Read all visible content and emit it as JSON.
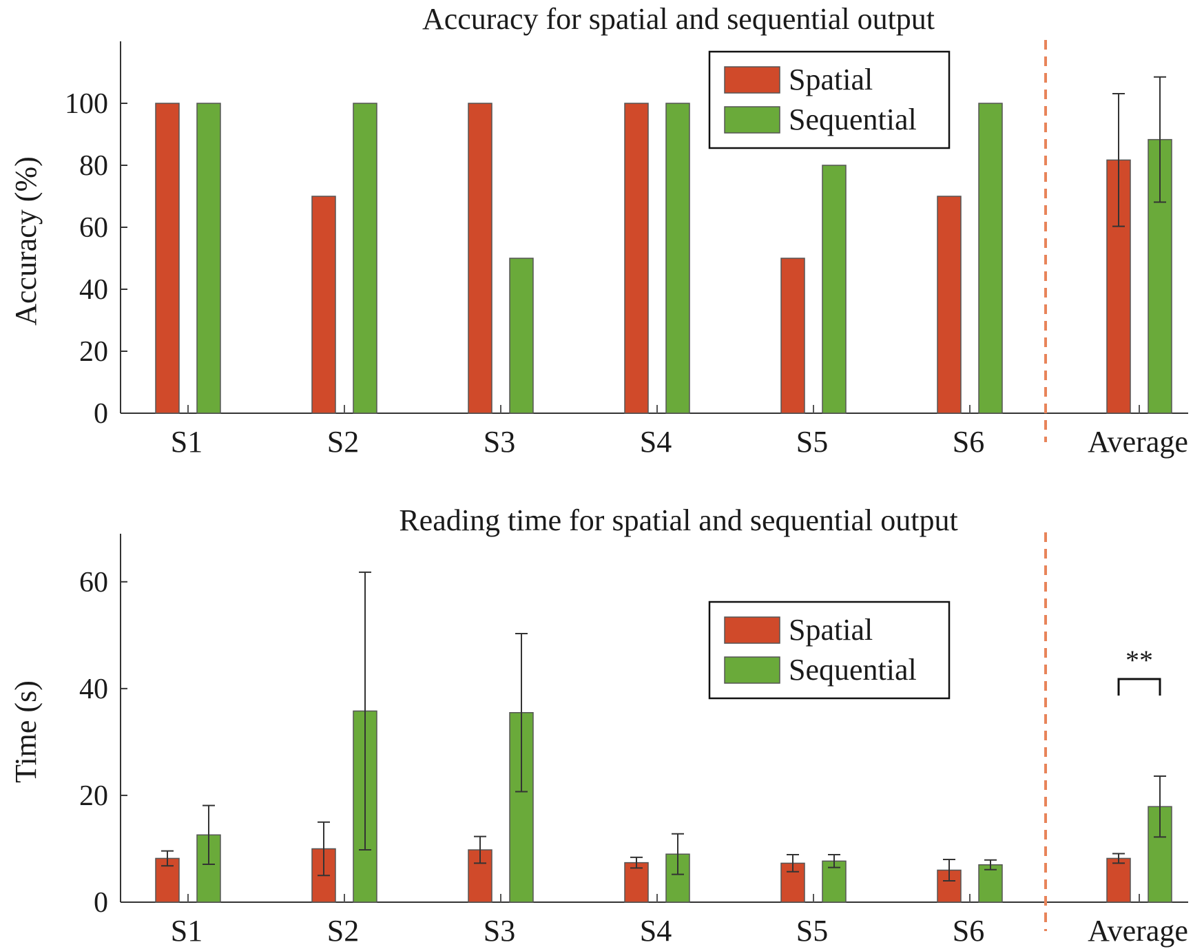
{
  "chart_data": [
    {
      "type": "bar",
      "title": "Accuracy for spatial and sequential output",
      "ylabel": "Accuracy (%)",
      "xlabel": "",
      "categories": [
        "S1",
        "S2",
        "S3",
        "S4",
        "S5",
        "S6",
        "Average"
      ],
      "ylim": [
        0,
        120
      ],
      "yticks": [
        0,
        20,
        40,
        60,
        80,
        100
      ],
      "series": [
        {
          "name": "Spatial",
          "color": "#d04a2a",
          "values": [
            100,
            70,
            100,
            100,
            50,
            70,
            81.7
          ],
          "error": [
            null,
            null,
            null,
            null,
            null,
            null,
            21.4
          ]
        },
        {
          "name": "Sequential",
          "color": "#6aaa3a",
          "values": [
            100,
            100,
            50,
            100,
            80,
            100,
            88.3
          ],
          "error": [
            null,
            null,
            null,
            null,
            null,
            null,
            20.2
          ]
        }
      ],
      "separator_color": "#e8845a",
      "legend": {
        "position": "top-right"
      },
      "annotation": ""
    },
    {
      "type": "bar",
      "title": "Reading time for spatial and sequential output",
      "ylabel": "Time (s)",
      "xlabel": "",
      "categories": [
        "S1",
        "S2",
        "S3",
        "S4",
        "S5",
        "S6",
        "Average"
      ],
      "ylim": [
        0,
        69
      ],
      "yticks": [
        0,
        20,
        40,
        60
      ],
      "series": [
        {
          "name": "Spatial",
          "color": "#d04a2a",
          "values": [
            8.2,
            10.0,
            9.8,
            7.4,
            7.3,
            6.0,
            8.2
          ],
          "error": [
            1.4,
            5.0,
            2.5,
            1.0,
            1.6,
            2.0,
            0.9
          ]
        },
        {
          "name": "Sequential",
          "color": "#6aaa3a",
          "values": [
            12.6,
            35.8,
            35.5,
            9.0,
            7.7,
            7.0,
            17.9
          ],
          "error": [
            5.5,
            26.0,
            14.8,
            3.8,
            1.2,
            0.9,
            5.7
          ]
        }
      ],
      "separator_color": "#e8845a",
      "legend": {
        "position": "top-right"
      },
      "annotation": "**"
    }
  ]
}
